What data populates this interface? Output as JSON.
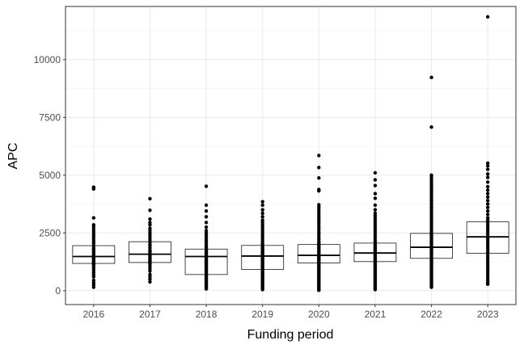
{
  "chart_data": {
    "type": "box",
    "xlabel": "Funding period",
    "ylabel": "APC",
    "ylim": [
      -600,
      12300
    ],
    "yticks": [
      0,
      2500,
      5000,
      7500,
      10000
    ],
    "grid": true,
    "categories": [
      "2016",
      "2017",
      "2018",
      "2019",
      "2020",
      "2021",
      "2022",
      "2023"
    ],
    "boxes": [
      {
        "category": "2016",
        "q1": 1180,
        "median": 1480,
        "q3": 1950,
        "points": [
          4480,
          4400,
          3150,
          2850,
          2750,
          2650,
          2550,
          2450,
          2350,
          2250,
          2150,
          2050,
          1950,
          1850,
          1780,
          1700,
          1620,
          1550,
          1500,
          1450,
          1400,
          1350,
          1300,
          1250,
          1200,
          1150,
          1100,
          1000,
          900,
          800,
          700,
          600,
          450,
          350,
          250,
          150
        ]
      },
      {
        "category": "2017",
        "q1": 1220,
        "median": 1580,
        "q3": 2120,
        "points": [
          3980,
          3480,
          3100,
          2950,
          2850,
          2700,
          2600,
          2500,
          2400,
          2300,
          2200,
          2100,
          2000,
          1950,
          1850,
          1750,
          1700,
          1620,
          1580,
          1520,
          1450,
          1400,
          1350,
          1300,
          1250,
          1200,
          1150,
          1050,
          950,
          850,
          700,
          600,
          500,
          380
        ]
      },
      {
        "category": "2018",
        "q1": 700,
        "median": 1480,
        "q3": 1800,
        "points": [
          4520,
          3700,
          3450,
          3200,
          2950,
          2750,
          2600,
          2500,
          2400,
          2300,
          2200,
          2100,
          2000,
          1900,
          1850,
          1750,
          1700,
          1650,
          1600,
          1550,
          1500,
          1450,
          1400,
          1350,
          1300,
          1250,
          1200,
          1150,
          1100,
          1050,
          1000,
          950,
          900,
          850,
          800,
          750,
          700,
          650,
          600,
          550,
          500,
          450,
          400,
          350,
          300,
          250,
          200,
          150,
          100,
          80
        ]
      },
      {
        "category": "2019",
        "q1": 920,
        "median": 1500,
        "q3": 1960,
        "points": [
          3850,
          3700,
          3500,
          3350,
          3200,
          3050,
          2950,
          2850,
          2750,
          2650,
          2550,
          2450,
          2350,
          2250,
          2150,
          2050,
          1980,
          1900,
          1850,
          1800,
          1750,
          1700,
          1650,
          1600,
          1550,
          1500,
          1450,
          1400,
          1350,
          1300,
          1250,
          1200,
          1150,
          1100,
          1050,
          1000,
          950,
          900,
          850,
          800,
          750,
          700,
          650,
          600,
          550,
          500,
          450,
          400,
          350,
          300,
          250,
          200,
          150,
          100,
          50
        ]
      },
      {
        "category": "2020",
        "q1": 1200,
        "median": 1530,
        "q3": 2000,
        "points": [
          5850,
          5330,
          4880,
          4380,
          4320,
          3720,
          3620,
          3520,
          3420,
          3320,
          3220,
          3120,
          3020,
          2920,
          2820,
          2720,
          2620,
          2520,
          2420,
          2320,
          2220,
          2120,
          2050,
          1980,
          1920,
          1860,
          1800,
          1740,
          1680,
          1620,
          1560,
          1500,
          1450,
          1400,
          1350,
          1300,
          1250,
          1200,
          1150,
          1100,
          1050,
          1000,
          950,
          900,
          850,
          800,
          750,
          700,
          650,
          600,
          550,
          500,
          450,
          400,
          350,
          300,
          250,
          200,
          150,
          100,
          50,
          20
        ]
      },
      {
        "category": "2021",
        "q1": 1260,
        "median": 1630,
        "q3": 2060,
        "points": [
          5100,
          4800,
          4550,
          4200,
          4000,
          3700,
          3500,
          3350,
          3250,
          3150,
          3050,
          2950,
          2850,
          2750,
          2650,
          2550,
          2450,
          2350,
          2250,
          2150,
          2080,
          2000,
          1950,
          1900,
          1850,
          1800,
          1750,
          1700,
          1650,
          1600,
          1550,
          1500,
          1450,
          1400,
          1350,
          1300,
          1250,
          1200,
          1150,
          1100,
          1050,
          1000,
          950,
          900,
          850,
          800,
          750,
          700,
          650,
          600,
          550,
          500,
          450,
          400,
          350,
          300,
          250,
          200,
          150,
          100,
          50
        ]
      },
      {
        "category": "2022",
        "q1": 1400,
        "median": 1880,
        "q3": 2480,
        "points": [
          9230,
          7080,
          5000,
          4900,
          4800,
          4700,
          4600,
          4500,
          4400,
          4300,
          4200,
          4100,
          4000,
          3900,
          3800,
          3700,
          3600,
          3500,
          3400,
          3300,
          3200,
          3100,
          3000,
          2900,
          2800,
          2700,
          2600,
          2500,
          2420,
          2340,
          2260,
          2180,
          2100,
          2020,
          1950,
          1880,
          1810,
          1740,
          1670,
          1600,
          1530,
          1460,
          1400,
          1340,
          1280,
          1220,
          1160,
          1100,
          1040,
          980,
          920,
          860,
          800,
          740,
          680,
          620,
          560,
          500,
          440,
          380,
          320,
          260,
          200,
          150
        ]
      },
      {
        "category": "2023",
        "q1": 1620,
        "median": 2330,
        "q3": 2980,
        "points": [
          11850,
          5520,
          5400,
          5250,
          5050,
          4900,
          4700,
          4500,
          4350,
          4200,
          4050,
          3900,
          3750,
          3600,
          3450,
          3300,
          3150,
          3050,
          2950,
          2850,
          2750,
          2650,
          2550,
          2450,
          2350,
          2250,
          2150,
          2050,
          1950,
          1850,
          1750,
          1650,
          1550,
          1450,
          1350,
          1250,
          1150,
          1050,
          950,
          850,
          750,
          650,
          550,
          450,
          350,
          280
        ]
      }
    ]
  }
}
